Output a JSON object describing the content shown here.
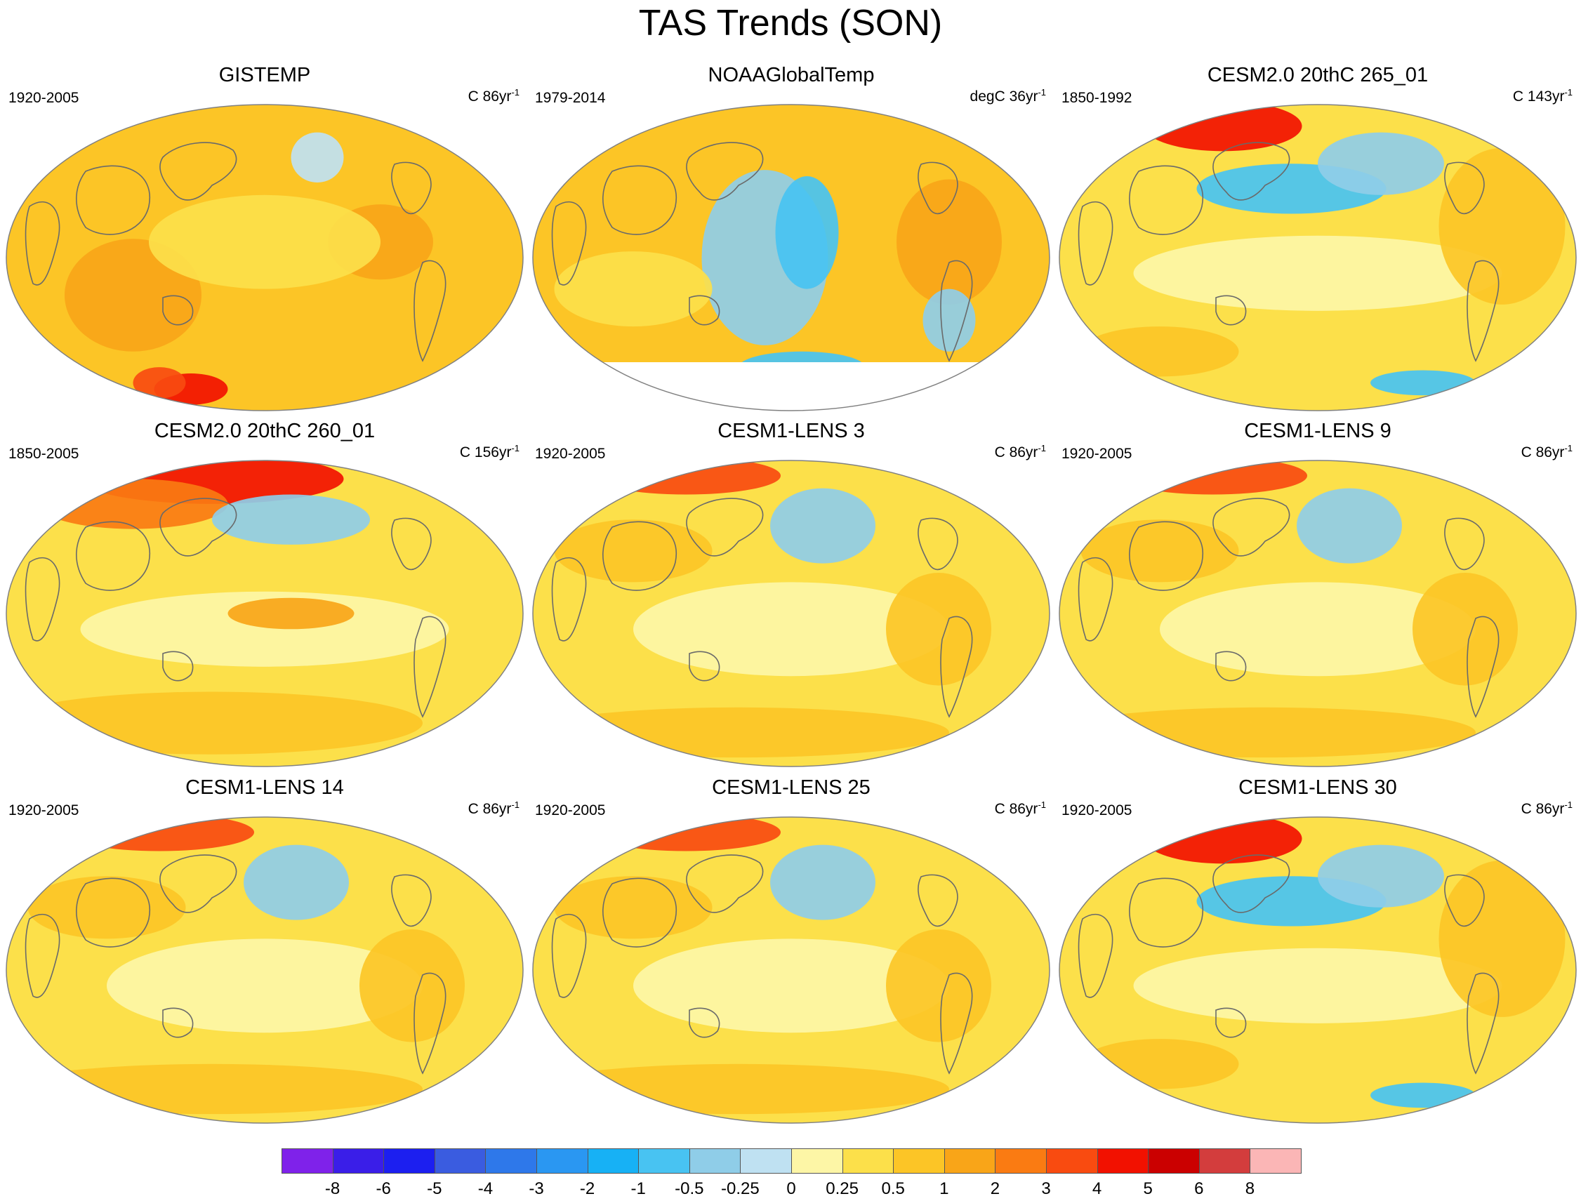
{
  "title": "TAS Trends (SON)",
  "panels": [
    {
      "title": "GISTEMP",
      "period": "1920-2005",
      "units": "C 86yr",
      "exp": "-1"
    },
    {
      "title": "NOAAGlobalTemp",
      "period": "1979-2014",
      "units": "degC 36yr",
      "exp": "-1"
    },
    {
      "title": "CESM2.0 20thC 265_01",
      "period": "1850-1992",
      "units": "C 143yr",
      "exp": "-1"
    },
    {
      "title": "CESM2.0 20thC 260_01",
      "period": "1850-2005",
      "units": "C 156yr",
      "exp": "-1"
    },
    {
      "title": "CESM1-LENS 3",
      "period": "1920-2005",
      "units": "C 86yr",
      "exp": "-1"
    },
    {
      "title": "CESM1-LENS 9",
      "period": "1920-2005",
      "units": "C 86yr",
      "exp": "-1"
    },
    {
      "title": "CESM1-LENS 14",
      "period": "1920-2005",
      "units": "C 86yr",
      "exp": "-1"
    },
    {
      "title": "CESM1-LENS 25",
      "period": "1920-2005",
      "units": "C 86yr",
      "exp": "-1"
    },
    {
      "title": "CESM1-LENS 30",
      "period": "1920-2005",
      "units": "C 86yr",
      "exp": "-1"
    }
  ],
  "colorbar": {
    "labels": [
      "-8",
      "-6",
      "-5",
      "-4",
      "-3",
      "-2",
      "-1",
      "-0.5",
      "-0.25",
      "0",
      "0.25",
      "0.5",
      "1",
      "2",
      "3",
      "4",
      "5",
      "6",
      "8"
    ],
    "colors": [
      "#7f22ea",
      "#3a1ee8",
      "#1c1ff0",
      "#3a5ce0",
      "#2e78ea",
      "#2a97f2",
      "#17b1f5",
      "#48c3f2",
      "#8fcde8",
      "#bfe1f2",
      "#fdf6a6",
      "#fce04a",
      "#fcc526",
      "#f9a518",
      "#fa7b12",
      "#f94b10",
      "#f21100",
      "#cb0000",
      "#d33d3d",
      "#fbb6b6"
    ]
  }
}
